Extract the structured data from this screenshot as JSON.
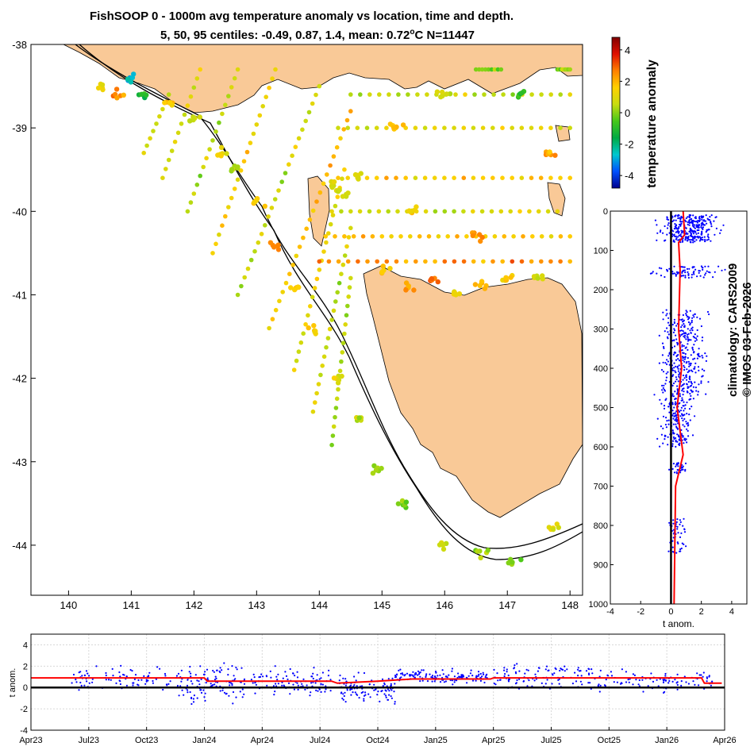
{
  "title_line1": "FishSOOP 0 - 1000m avg temperature anomaly vs location, time and depth.",
  "title_line2": "5, 50, 95 centiles: -0.49, 0.87, 1.4, mean: 0.72",
  "title_degree": "o",
  "title_tail": "C N=11447",
  "credit_climatology": "climatology: CARS2009",
  "credit_imos": "© IMOS 03-Feb-2026",
  "colorbar": {
    "label": "temperature anomaly",
    "ticks": [
      "4",
      "2",
      "0",
      "-2",
      "-4"
    ],
    "range": [
      -4.8,
      4.8
    ],
    "colors": [
      "#00008f",
      "#0050ff",
      "#00c8d0",
      "#00aa44",
      "#46c81a",
      "#c8dc10",
      "#ffd000",
      "#ff8000",
      "#e01000",
      "#800000"
    ]
  },
  "chart_data": [
    {
      "type": "scatter",
      "name": "map",
      "xlim": [
        139.4,
        148.2
      ],
      "ylim": [
        -44.6,
        -38.0
      ],
      "xticks": [
        "140",
        "141",
        "142",
        "143",
        "144",
        "145",
        "146",
        "147",
        "148"
      ],
      "yticks": [
        "-38",
        "-39",
        "-40",
        "-41",
        "-42",
        "-43",
        "-44"
      ],
      "land_color": "#f9c997",
      "points": [
        {
          "lon": 140.5,
          "lat": -38.5,
          "anom": 1.2
        },
        {
          "lon": 140.8,
          "lat": -38.6,
          "anom": 2.4
        },
        {
          "lon": 141.0,
          "lat": -38.4,
          "anom": -2.8
        },
        {
          "lon": 141.2,
          "lat": -38.6,
          "anom": -1.2
        },
        {
          "lon": 141.6,
          "lat": -38.7,
          "anom": 1.8
        },
        {
          "lon": 142.0,
          "lat": -38.9,
          "anom": 0.6
        },
        {
          "lon": 142.4,
          "lat": -39.3,
          "anom": 1.2
        },
        {
          "lon": 142.7,
          "lat": -39.5,
          "anom": 0.3
        },
        {
          "lon": 143.0,
          "lat": -39.9,
          "anom": 1.5
        },
        {
          "lon": 143.3,
          "lat": -40.4,
          "anom": 2.6
        },
        {
          "lon": 143.6,
          "lat": -40.9,
          "anom": 1.8
        },
        {
          "lon": 143.9,
          "lat": -41.4,
          "anom": 1.4
        },
        {
          "lon": 144.3,
          "lat": -42.0,
          "anom": 0.8
        },
        {
          "lon": 144.6,
          "lat": -42.5,
          "anom": 0.5
        },
        {
          "lon": 144.9,
          "lat": -43.1,
          "anom": 0.2
        },
        {
          "lon": 145.3,
          "lat": -43.5,
          "anom": -0.2
        },
        {
          "lon": 146.0,
          "lat": -44.0,
          "anom": 0.4
        },
        {
          "lon": 146.6,
          "lat": -44.1,
          "anom": 0.2
        },
        {
          "lon": 147.1,
          "lat": -44.2,
          "anom": 0.1
        },
        {
          "lon": 147.7,
          "lat": -43.8,
          "anom": 1.0
        },
        {
          "lon": 144.2,
          "lat": -39.7,
          "anom": 0.9
        },
        {
          "lon": 144.4,
          "lat": -39.8,
          "anom": 0.7
        },
        {
          "lon": 144.6,
          "lat": -39.6,
          "anom": 1.0
        },
        {
          "lon": 145.0,
          "lat": -40.7,
          "anom": 1.6
        },
        {
          "lon": 145.4,
          "lat": -40.9,
          "anom": 2.2
        },
        {
          "lon": 145.8,
          "lat": -40.8,
          "anom": 2.8
        },
        {
          "lon": 146.2,
          "lat": -41.0,
          "anom": 1.2
        },
        {
          "lon": 146.6,
          "lat": -40.9,
          "anom": 2.0
        },
        {
          "lon": 147.0,
          "lat": -40.8,
          "anom": 1.6
        },
        {
          "lon": 147.5,
          "lat": -40.8,
          "anom": 0.4
        },
        {
          "lon": 145.2,
          "lat": -39.0,
          "anom": 1.6
        },
        {
          "lon": 146.0,
          "lat": -38.6,
          "anom": 0.6
        },
        {
          "lon": 147.2,
          "lat": -38.6,
          "anom": -0.8
        },
        {
          "lon": 147.7,
          "lat": -39.3,
          "anom": 2.2
        },
        {
          "lon": 146.5,
          "lat": -40.3,
          "anom": 2.5
        },
        {
          "lon": 145.5,
          "lat": -40.0,
          "anom": 1.4
        }
      ],
      "tracks": [
        {
          "lon0": 141.6,
          "lat0": -38.6,
          "lon1": 141.2,
          "lat1": -39.3,
          "anom": 0.6
        },
        {
          "lon0": 142.1,
          "lat0": -38.3,
          "lon1": 141.5,
          "lat1": -39.6,
          "anom": 0.9
        },
        {
          "lon0": 142.7,
          "lat0": -38.3,
          "lon1": 141.9,
          "lat1": -40.0,
          "anom": 0.5
        },
        {
          "lon0": 143.3,
          "lat0": -38.3,
          "lon1": 142.3,
          "lat1": -40.5,
          "anom": 1.3
        },
        {
          "lon0": 144.0,
          "lat0": -38.5,
          "lon1": 142.7,
          "lat1": -41.0,
          "anom": 0.8
        },
        {
          "lon0": 144.5,
          "lat0": -38.8,
          "lon1": 143.2,
          "lat1": -41.4,
          "anom": 1.6
        },
        {
          "lon0": 144.4,
          "lat0": -39.5,
          "lon1": 143.6,
          "lat1": -41.9,
          "anom": 1.1
        },
        {
          "lon0": 144.5,
          "lat0": -40.2,
          "lon1": 143.9,
          "lat1": -42.4,
          "anom": 0.7
        },
        {
          "lon0": 144.5,
          "lat0": -40.8,
          "lon1": 144.2,
          "lat1": -42.8,
          "anom": 0.4
        },
        {
          "lon0": 144.3,
          "lat0": -39.0,
          "lon1": 148.0,
          "lat1": -39.0,
          "anom": 0.9
        },
        {
          "lon0": 144.3,
          "lat0": -39.6,
          "lon1": 148.0,
          "lat1": -39.6,
          "anom": 1.6
        },
        {
          "lon0": 144.2,
          "lat0": -40.0,
          "lon1": 147.8,
          "lat1": -40.0,
          "anom": 0.8
        },
        {
          "lon0": 144.1,
          "lat0": -40.3,
          "lon1": 148.0,
          "lat1": -40.3,
          "anom": 1.8
        },
        {
          "lon0": 144.0,
          "lat0": -40.6,
          "lon1": 148.0,
          "lat1": -40.6,
          "anom": 2.4
        },
        {
          "lon0": 144.5,
          "lat0": -38.6,
          "lon1": 148.0,
          "lat1": -38.6,
          "anom": 0.6
        },
        {
          "lon0": 147.8,
          "lat0": -38.3,
          "lon1": 148.0,
          "lat1": -38.3,
          "anom": 0.0
        },
        {
          "lon0": 146.5,
          "lat0": -38.3,
          "lon1": 146.9,
          "lat1": -38.3,
          "anom": 0.0
        }
      ]
    },
    {
      "type": "scatter",
      "name": "depth_profile",
      "xlabel": "t anom.",
      "xlim": [
        -4,
        5
      ],
      "ylim": [
        0,
        1000
      ],
      "xticks": [
        "-4",
        "-2",
        "0",
        "2",
        "4"
      ],
      "yticks": [
        "0",
        "100",
        "200",
        "300",
        "400",
        "500",
        "600",
        "700",
        "800",
        "900",
        "1000"
      ],
      "point_color": "#0000ff",
      "median_color": "#ff0000",
      "clusters": [
        {
          "depth": [
            10,
            80
          ],
          "center": 1.2,
          "spread": 1.5,
          "n": 320
        },
        {
          "depth": [
            140,
            170
          ],
          "center": 0.9,
          "spread": 1.8,
          "n": 80
        },
        {
          "depth": [
            250,
            480
          ],
          "center": 0.8,
          "spread": 1.2,
          "n": 360
        },
        {
          "depth": [
            480,
            600
          ],
          "center": 0.4,
          "spread": 0.9,
          "n": 160
        },
        {
          "depth": [
            640,
            670
          ],
          "center": 0.6,
          "spread": 0.6,
          "n": 30
        },
        {
          "depth": [
            780,
            870
          ],
          "center": 0.4,
          "spread": 0.5,
          "n": 50
        }
      ],
      "median_profile": [
        {
          "depth": 0,
          "anom": 0.8
        },
        {
          "depth": 60,
          "anom": 0.9
        },
        {
          "depth": 80,
          "anom": 0.5
        },
        {
          "depth": 150,
          "anom": 0.6
        },
        {
          "depth": 300,
          "anom": 0.5
        },
        {
          "depth": 400,
          "anom": 0.7
        },
        {
          "depth": 500,
          "anom": 0.4
        },
        {
          "depth": 620,
          "anom": 0.8
        },
        {
          "depth": 700,
          "anom": 0.3
        },
        {
          "depth": 1000,
          "anom": 0.2
        }
      ]
    },
    {
      "type": "scatter",
      "name": "time_series",
      "ylabel": "t anom.",
      "ylim": [
        -4,
        5
      ],
      "xticks": [
        "Apr23",
        "Jul23",
        "Oct23",
        "Jan24",
        "Apr24",
        "Jul24",
        "Oct24",
        "Jan25",
        "Apr25",
        "Jul25",
        "Oct25",
        "Jan26",
        "Apr26"
      ],
      "yticks": [
        "4",
        "2",
        "0",
        "-2",
        "-4"
      ],
      "point_color": "#0000ff",
      "median_color": "#ff0000",
      "clusters": [
        {
          "t": [
            0.7,
            2.6
          ],
          "center": 0.8,
          "spread": 1.0,
          "n": 90
        },
        {
          "t": [
            2.6,
            3.7
          ],
          "center": 0.3,
          "spread": 1.6,
          "n": 110
        },
        {
          "t": [
            3.8,
            5.2
          ],
          "center": 0.6,
          "spread": 1.0,
          "n": 100
        },
        {
          "t": [
            5.3,
            6.3
          ],
          "center": -0.1,
          "spread": 1.1,
          "n": 100
        },
        {
          "t": [
            6.3,
            7.9
          ],
          "center": 1.0,
          "spread": 0.5,
          "n": 140
        },
        {
          "t": [
            8.0,
            9.8
          ],
          "center": 1.0,
          "spread": 1.0,
          "n": 110
        },
        {
          "t": [
            9.8,
            11.8
          ],
          "center": 0.6,
          "spread": 0.8,
          "n": 100
        }
      ],
      "median_line": [
        {
          "t": 0.0,
          "anom": 0.9
        },
        {
          "t": 3.0,
          "anom": 0.9
        },
        {
          "t": 3.05,
          "anom": 0.6
        },
        {
          "t": 5.2,
          "anom": 0.6
        },
        {
          "t": 5.3,
          "anom": 0.4
        },
        {
          "t": 6.0,
          "anom": 0.6
        },
        {
          "t": 6.6,
          "anom": 0.8
        },
        {
          "t": 7.95,
          "anom": 0.8
        },
        {
          "t": 8.0,
          "anom": 0.9
        },
        {
          "t": 11.6,
          "anom": 0.9
        },
        {
          "t": 11.65,
          "anom": 0.4
        },
        {
          "t": 11.95,
          "anom": 0.4
        }
      ]
    }
  ]
}
